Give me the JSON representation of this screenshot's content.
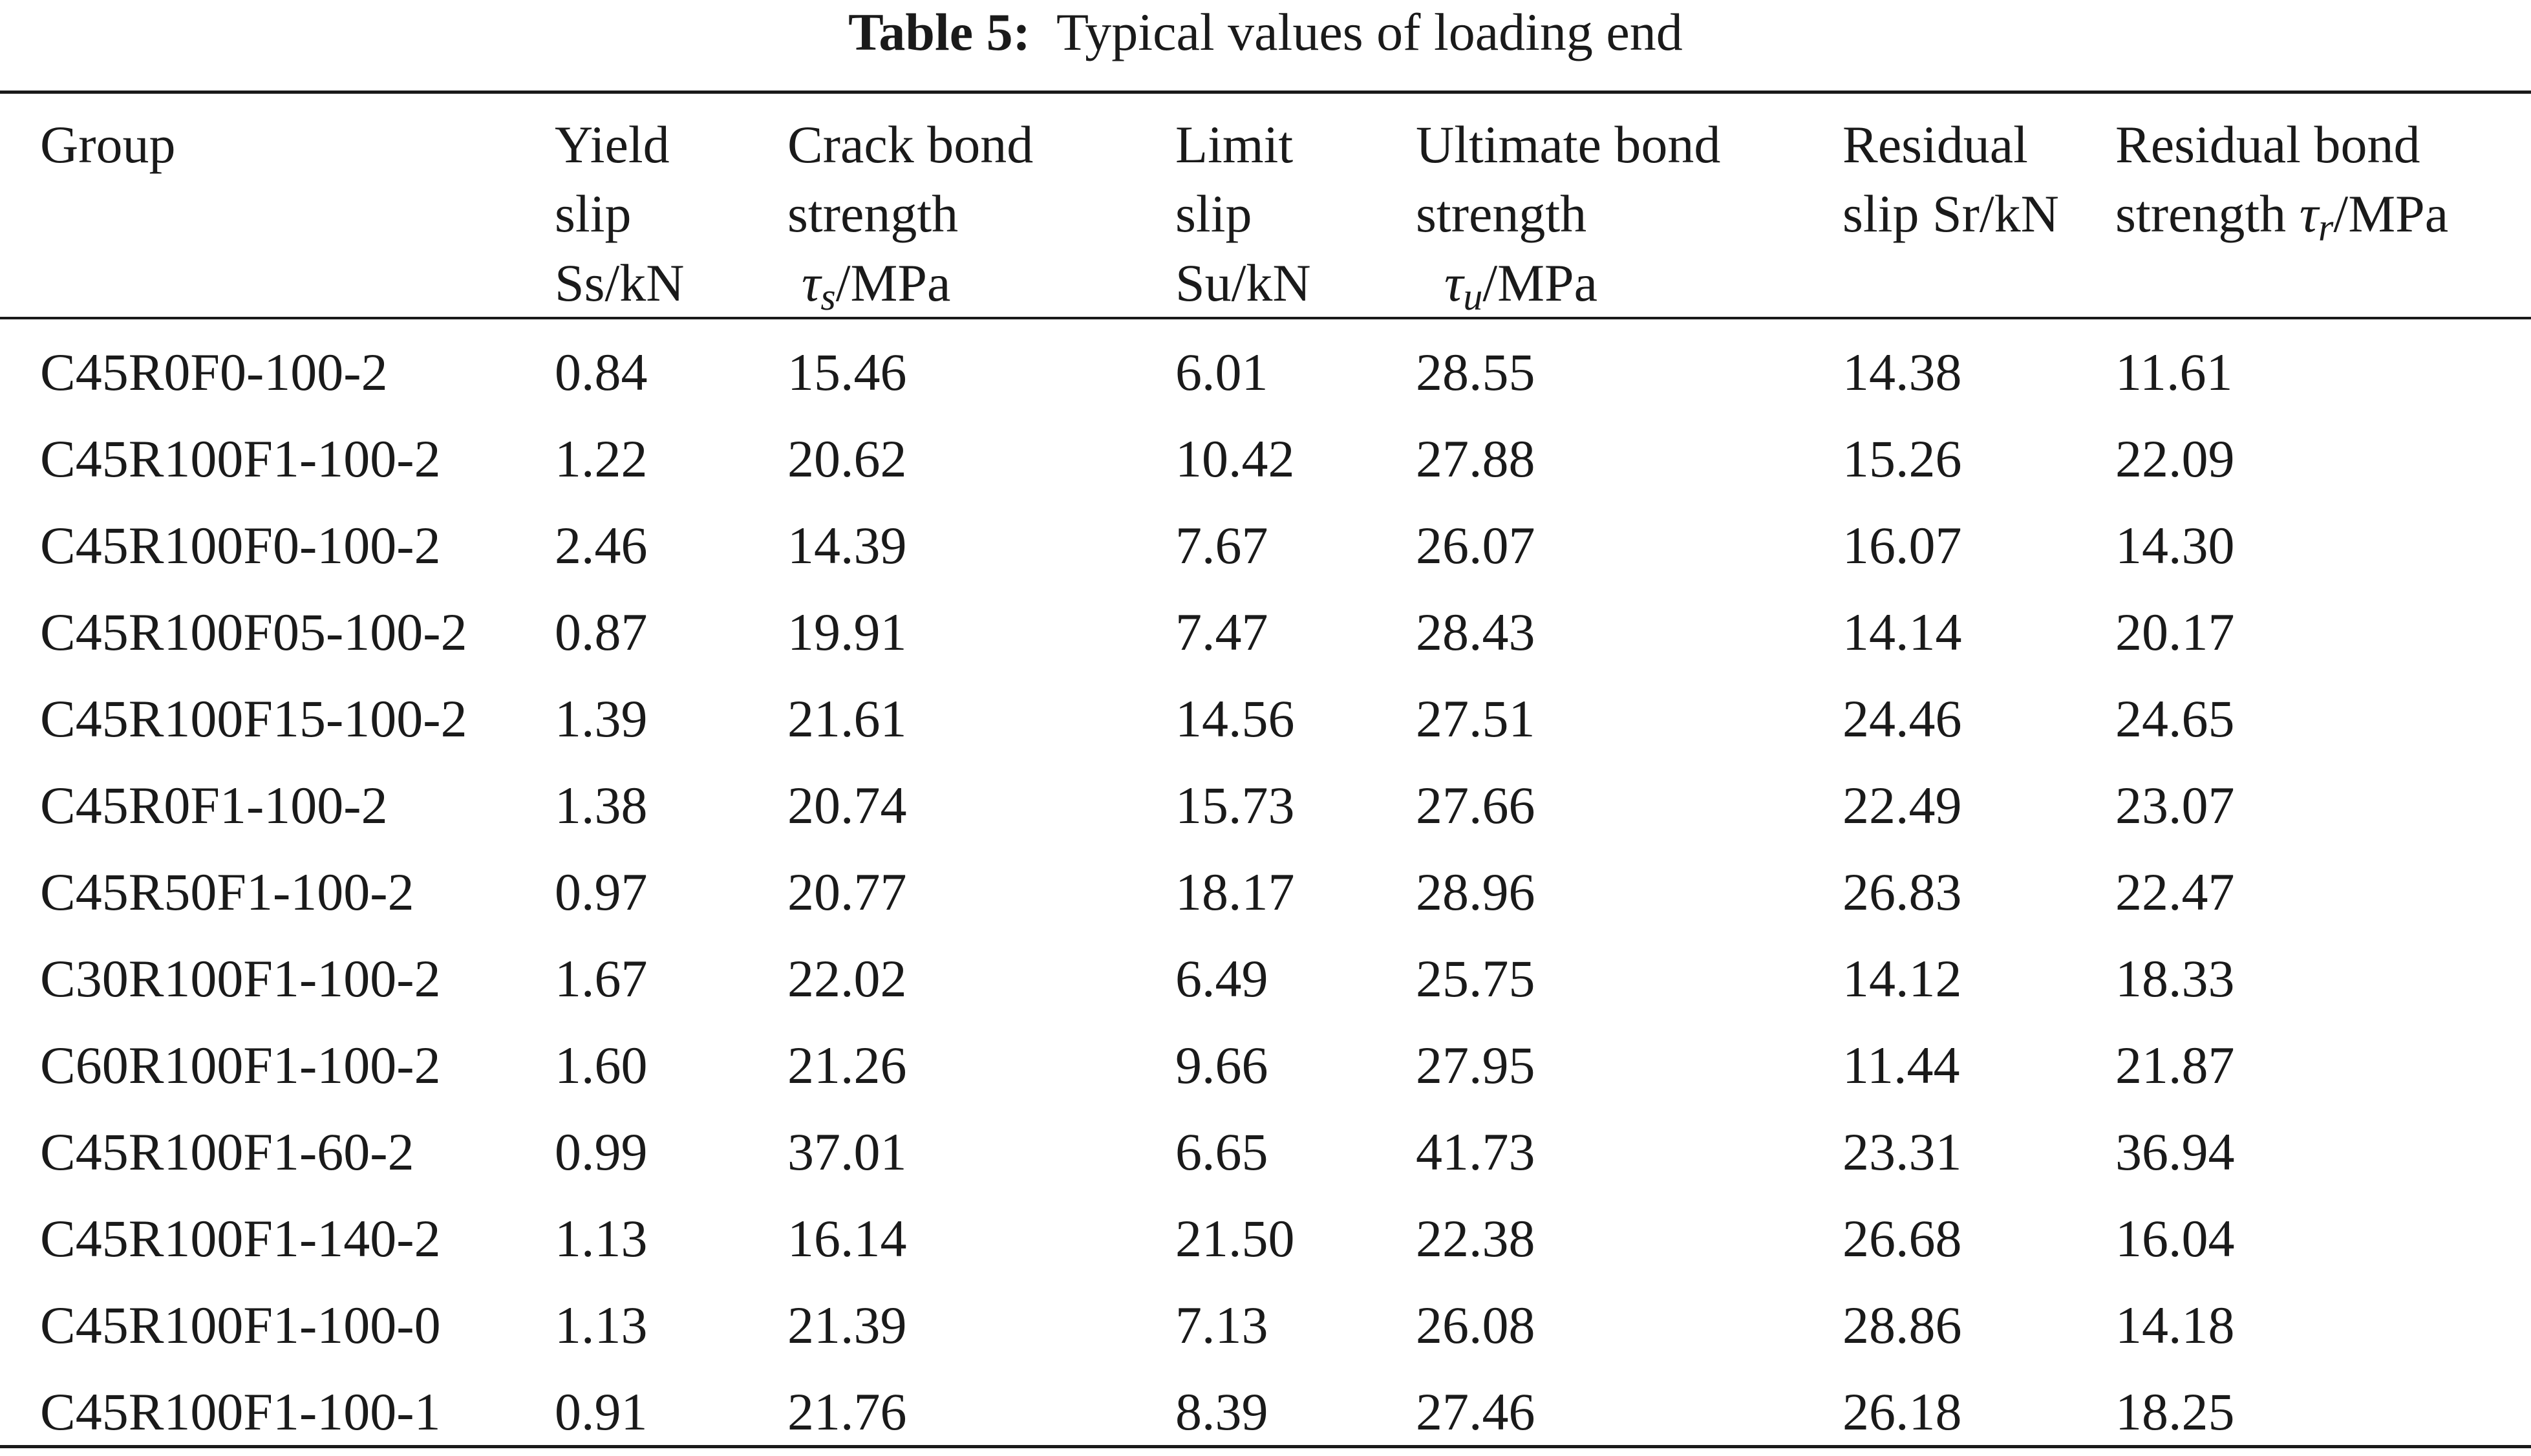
{
  "caption": {
    "label": "Table 5:",
    "text": "Typical values of loading end"
  },
  "header": {
    "group": "Group",
    "yield_slip": [
      "Yield",
      "slip",
      "Ss/kN"
    ],
    "crack_bond": [
      "Crack bond",
      "strength"
    ],
    "crack_bond_symbol": "τ",
    "crack_bond_sub": "s",
    "crack_bond_unit": "/MPa",
    "limit_slip": [
      "Limit",
      "slip",
      "Su/kN"
    ],
    "ultimate_bond": [
      "Ultimate bond",
      "strength"
    ],
    "ultimate_bond_symbol": "τ",
    "ultimate_bond_sub": "u",
    "ultimate_bond_unit": "/MPa",
    "residual_slip": [
      "Residual",
      "slip Sr/kN"
    ],
    "residual_bond_line1": "Residual bond",
    "residual_bond_prefix": "strength ",
    "residual_bond_symbol": "τ",
    "residual_bond_sub": "r",
    "residual_bond_unit": "/MPa"
  },
  "rows": [
    [
      "C45R0F0-100-2",
      "0.84",
      "15.46",
      "6.01",
      "28.55",
      "14.38",
      "11.61"
    ],
    [
      "C45R100F1-100-2",
      "1.22",
      "20.62",
      "10.42",
      "27.88",
      "15.26",
      "22.09"
    ],
    [
      "C45R100F0-100-2",
      "2.46",
      "14.39",
      "7.67",
      "26.07",
      "16.07",
      "14.30"
    ],
    [
      "C45R100F05-100-2",
      "0.87",
      "19.91",
      "7.47",
      "28.43",
      "14.14",
      "20.17"
    ],
    [
      "C45R100F15-100-2",
      "1.39",
      "21.61",
      "14.56",
      "27.51",
      "24.46",
      "24.65"
    ],
    [
      "C45R0F1-100-2",
      "1.38",
      "20.74",
      "15.73",
      "27.66",
      "22.49",
      "23.07"
    ],
    [
      "C45R50F1-100-2",
      "0.97",
      "20.77",
      "18.17",
      "28.96",
      "26.83",
      "22.47"
    ],
    [
      "C30R100F1-100-2",
      "1.67",
      "22.02",
      "6.49",
      "25.75",
      "14.12",
      "18.33"
    ],
    [
      "C60R100F1-100-2",
      "1.60",
      "21.26",
      "9.66",
      "27.95",
      "11.44",
      "21.87"
    ],
    [
      "C45R100F1-60-2",
      "0.99",
      "37.01",
      "6.65",
      "41.73",
      "23.31",
      "36.94"
    ],
    [
      "C45R100F1-140-2",
      "1.13",
      "16.14",
      "21.50",
      "22.38",
      "26.68",
      "16.04"
    ],
    [
      "C45R100F1-100-0",
      "1.13",
      "21.39",
      "7.13",
      "26.08",
      "28.86",
      "14.18"
    ],
    [
      "C45R100F1-100-1",
      "0.91",
      "21.76",
      "8.39",
      "27.46",
      "26.18",
      "18.25"
    ]
  ]
}
